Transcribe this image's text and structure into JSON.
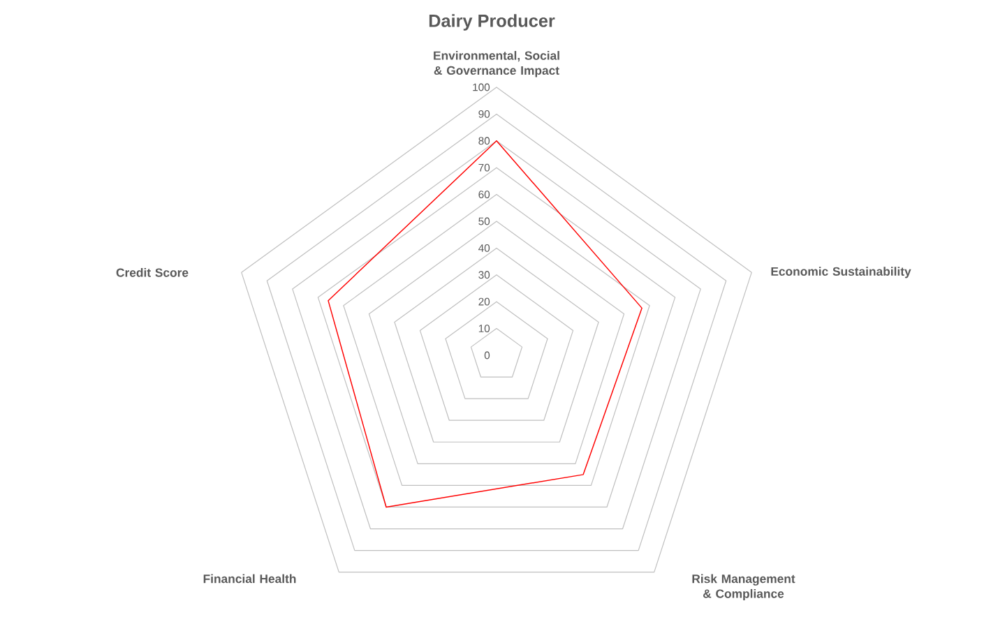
{
  "chart_data": {
    "type": "radar",
    "title": "Dairy Producer",
    "categories": [
      "Environmental, Social & Governance Impact",
      "Economic Sustainability",
      "Risk Management & Compliance",
      "Financial Health",
      "Credit Score"
    ],
    "series": [
      {
        "color": "#ff0000",
        "values": [
          80,
          57,
          55,
          70,
          66
        ]
      }
    ],
    "ylim": [
      0,
      100
    ],
    "yticks": [
      0,
      10,
      20,
      30,
      40,
      50,
      60,
      70,
      80,
      90,
      100
    ],
    "grid": true
  }
}
